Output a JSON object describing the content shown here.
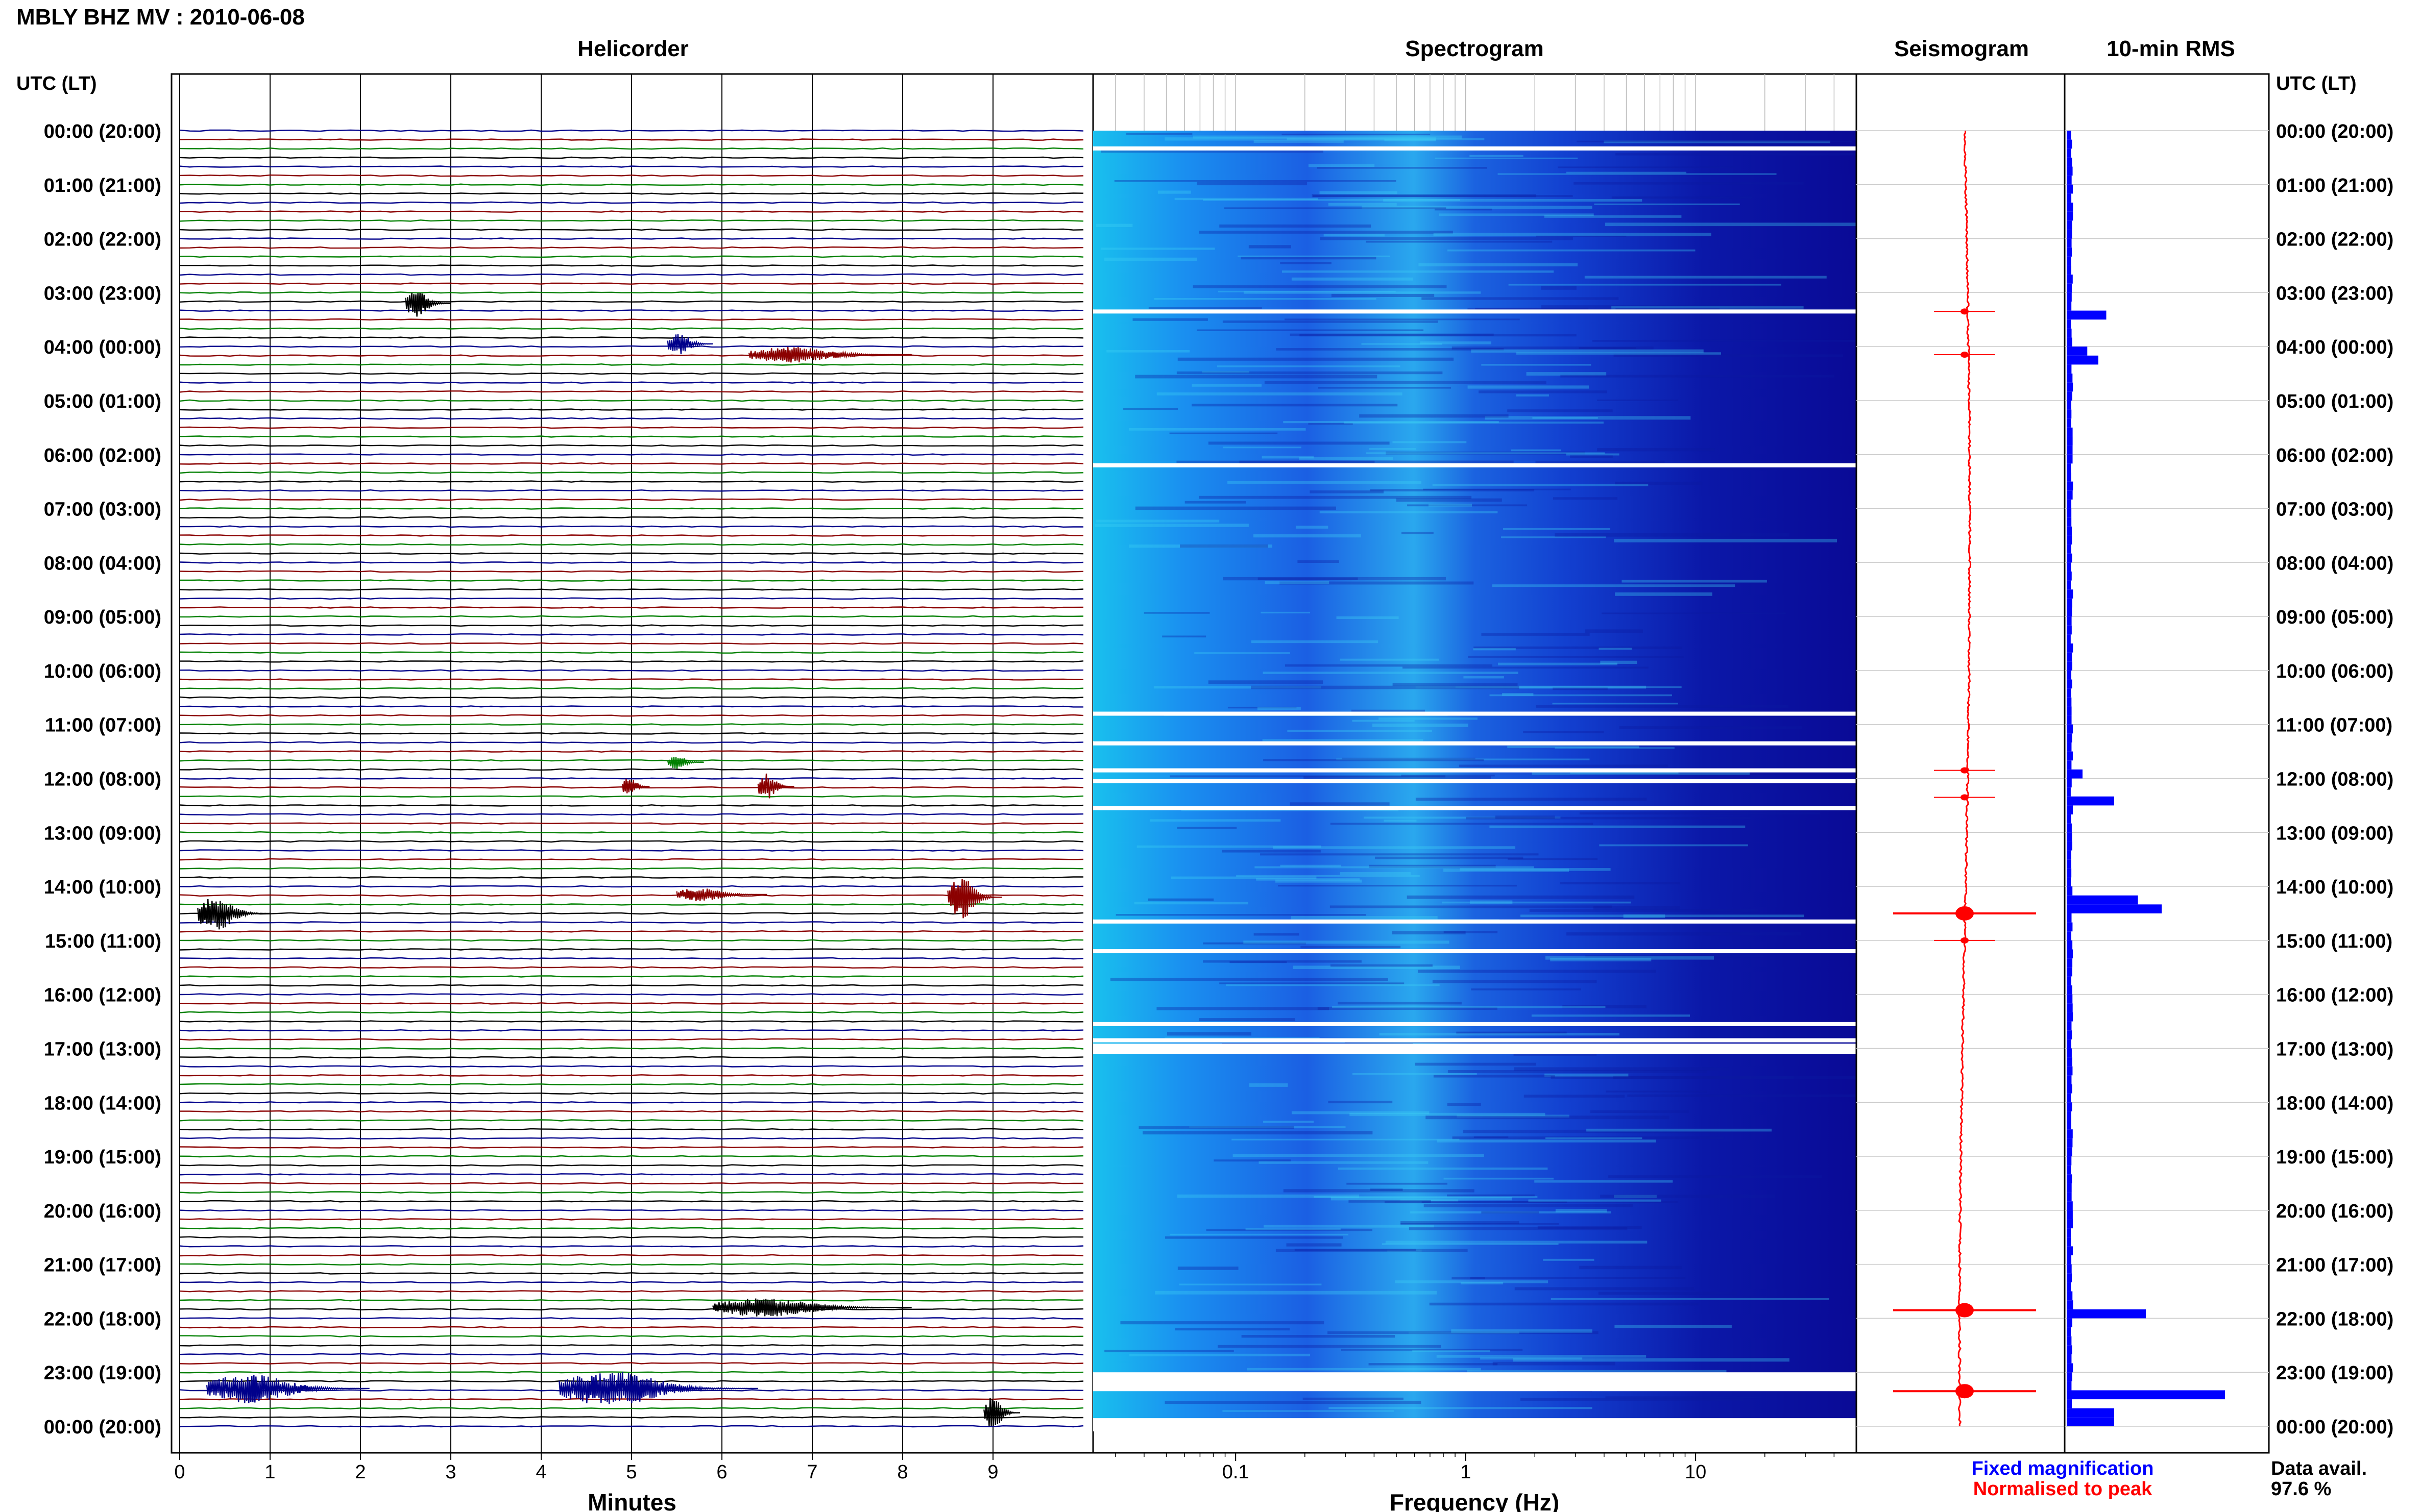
{
  "header": {
    "title": "MBLY BHZ MV : 2010-06-08",
    "left_axis_label": "UTC (LT)",
    "right_axis_label": "UTC (LT)"
  },
  "panels": {
    "helicorder": "Helicorder",
    "spectrogram": "Spectrogram",
    "seismogram": "Seismogram",
    "rms": "10-min RMS"
  },
  "footer": {
    "fixed_magnification": "Fixed magnification",
    "normalised_to_peak": "Normalised to peak",
    "data_avail_label": "Data avail.",
    "data_avail_value": "97.6 %"
  },
  "colors": {
    "trace_blue": "#00008b",
    "trace_red": "#8b0000",
    "trace_green": "#008000",
    "trace_black": "#000000",
    "spectrogram_dark": "#0a0a96",
    "spectrogram_mid": "#1f4fe6",
    "spectrogram_light": "#1fc8f0",
    "seismogram": "#ff0000",
    "rms_bar": "#0000ff",
    "fixed_magnification": "#0000ff",
    "normalised_to_peak": "#ff0000"
  },
  "chart_data": [
    {
      "type": "line",
      "name": "helicorder",
      "xlabel": "Minutes",
      "x_ticks": [
        0,
        1,
        2,
        3,
        4,
        5,
        6,
        7,
        8,
        9
      ],
      "xlim": [
        0,
        10
      ],
      "rows_per_hour": 6,
      "time_labels": [
        "00:00 (20:00)",
        "01:00 (21:00)",
        "02:00 (22:00)",
        "03:00 (23:00)",
        "04:00 (00:00)",
        "05:00 (01:00)",
        "06:00 (02:00)",
        "07:00 (03:00)",
        "08:00 (04:00)",
        "09:00 (05:00)",
        "10:00 (06:00)",
        "11:00 (07:00)",
        "12:00 (08:00)",
        "13:00 (09:00)",
        "14:00 (10:00)",
        "15:00 (11:00)",
        "16:00 (12:00)",
        "17:00 (13:00)",
        "18:00 (14:00)",
        "19:00 (15:00)",
        "20:00 (16:00)",
        "21:00 (17:00)",
        "22:00 (18:00)",
        "23:00 (19:00)",
        "00:00 (20:00)"
      ],
      "events": [
        {
          "hour": 3.2,
          "minute": 2.5,
          "dur": 0.5,
          "amp": 1.0
        },
        {
          "hour": 3.95,
          "minute": 5.4,
          "dur": 0.5,
          "amp": 0.8
        },
        {
          "hour": 4.15,
          "minute": 6.3,
          "dur": 1.8,
          "amp": 0.6
        },
        {
          "hour": 11.7,
          "minute": 5.4,
          "dur": 0.4,
          "amp": 0.5
        },
        {
          "hour": 12.15,
          "minute": 4.9,
          "dur": 0.3,
          "amp": 0.7
        },
        {
          "hour": 12.15,
          "minute": 6.4,
          "dur": 0.4,
          "amp": 1.0
        },
        {
          "hour": 14.15,
          "minute": 5.5,
          "dur": 1.0,
          "amp": 0.5
        },
        {
          "hour": 14.2,
          "minute": 8.5,
          "dur": 0.6,
          "amp": 1.6
        },
        {
          "hour": 14.5,
          "minute": 0.2,
          "dur": 0.8,
          "amp": 1.3
        },
        {
          "hour": 21.8,
          "minute": 5.9,
          "dur": 2.2,
          "amp": 0.7
        },
        {
          "hour": 23.3,
          "minute": 0.3,
          "dur": 1.8,
          "amp": 1.1
        },
        {
          "hour": 23.3,
          "minute": 4.2,
          "dur": 2.2,
          "amp": 1.3
        },
        {
          "hour": 23.75,
          "minute": 8.9,
          "dur": 0.4,
          "amp": 1.2
        }
      ]
    },
    {
      "type": "heatmap",
      "name": "spectrogram",
      "xlabel": "Frequency (Hz)",
      "x_scale": "log",
      "x_ticks": [
        0.1,
        1,
        10
      ],
      "xlim": [
        0.024,
        50
      ],
      "gaps_hours": [
        0.33,
        3.35,
        6.2,
        10.8,
        11.35,
        11.85,
        12.05,
        12.55,
        14.65,
        15.2,
        16.55,
        16.85,
        16.95,
        23.1,
        23.25,
        23.9
      ]
    },
    {
      "type": "line",
      "name": "seismogram",
      "events_hours": [
        3.35,
        4.15,
        11.85,
        12.35,
        14.5,
        15.0,
        21.85,
        23.35
      ]
    },
    {
      "type": "bar",
      "name": "10-min RMS",
      "orientation": "horizontal",
      "spikes": [
        {
          "hour": 3.4,
          "value": 0.25
        },
        {
          "hour": 4.0,
          "value": 0.13
        },
        {
          "hour": 4.15,
          "value": 0.2
        },
        {
          "hour": 11.85,
          "value": 0.1
        },
        {
          "hour": 12.3,
          "value": 0.3
        },
        {
          "hour": 14.2,
          "value": 0.45
        },
        {
          "hour": 14.35,
          "value": 0.6
        },
        {
          "hour": 21.8,
          "value": 0.5
        },
        {
          "hour": 23.35,
          "value": 1.0
        },
        {
          "hour": 23.75,
          "value": 0.3
        }
      ]
    }
  ]
}
